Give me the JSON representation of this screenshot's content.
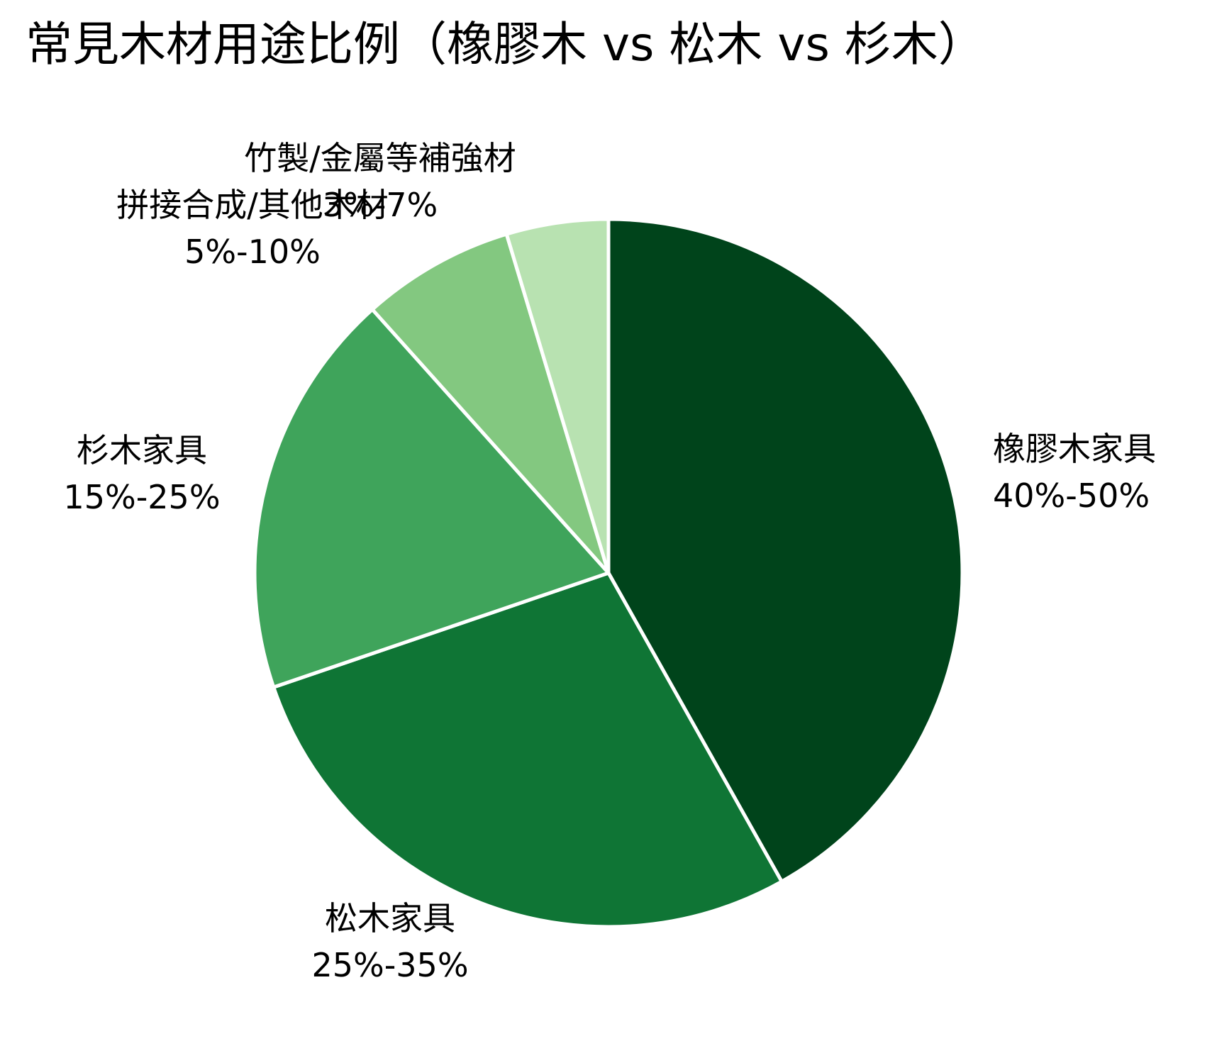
{
  "chart_data": {
    "type": "pie",
    "title": "常見木材用途比例（橡膠木 vs 松木 vs 杉木）",
    "categories": [
      "橡膠木家具",
      "松木家具",
      "杉木家具",
      "拼接合成/其他木材",
      "竹製/金屬等補強材"
    ],
    "value_labels": [
      "40%-50%",
      "25%-35%",
      "15%-25%",
      "5%-10%",
      "3%-7%"
    ],
    "values": [
      45,
      30,
      20,
      7.5,
      5
    ],
    "colors": [
      "#00441b",
      "#0f7535",
      "#3fa45b",
      "#83c880",
      "#b8e2b1"
    ],
    "start_angle": "12 o'clock",
    "direction": "clockwise",
    "legend": "none (labels placed outside slices)",
    "grid": false
  },
  "title": "常見木材用途比例（橡膠木 vs 松木 vs 杉木）",
  "labels": [
    {
      "name": "橡膠木家具",
      "range": "40%-50%"
    },
    {
      "name": "松木家具",
      "range": "25%-35%"
    },
    {
      "name": "杉木家具",
      "range": "15%-25%"
    },
    {
      "name": "拼接合成/其他木材",
      "range": "5%-10%"
    },
    {
      "name": "竹製/金屬等補強材",
      "range": "3%-7%"
    }
  ]
}
